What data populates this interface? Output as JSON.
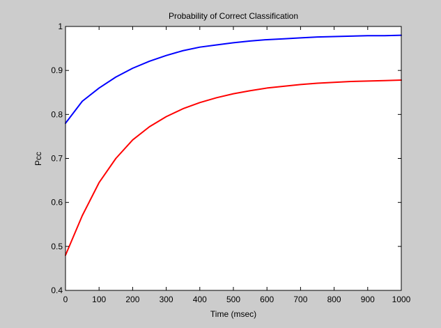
{
  "chart_data": {
    "type": "line",
    "title": "Probability of Correct Classification",
    "xlabel": "Time (msec)",
    "ylabel": "Pcc",
    "xlim": [
      0,
      1000
    ],
    "ylim": [
      0.4,
      1
    ],
    "xticks": [
      0,
      100,
      200,
      300,
      400,
      500,
      600,
      700,
      800,
      900,
      1000
    ],
    "xtick_labels": [
      "0",
      "100",
      "200",
      "300",
      "400",
      "500",
      "600",
      "700",
      "800",
      "900",
      "1000"
    ],
    "yticks": [
      0.4,
      0.5,
      0.6,
      0.7,
      0.8,
      0.9,
      1
    ],
    "ytick_labels": [
      "0.4",
      "0.5",
      "0.6",
      "0.7",
      "0.8",
      "0.9",
      "1"
    ],
    "grid": false,
    "legend": false,
    "background_color": "#cccccc",
    "plot_background_color": "#ffffff",
    "series": [
      {
        "color": "#0000ff",
        "x": [
          0,
          50,
          100,
          150,
          200,
          250,
          300,
          350,
          400,
          450,
          500,
          550,
          600,
          650,
          700,
          750,
          800,
          850,
          900,
          950,
          1000
        ],
        "y": [
          0.78,
          0.83,
          0.86,
          0.885,
          0.905,
          0.921,
          0.934,
          0.945,
          0.953,
          0.958,
          0.963,
          0.967,
          0.97,
          0.972,
          0.974,
          0.976,
          0.977,
          0.978,
          0.979,
          0.979,
          0.98
        ]
      },
      {
        "color": "#ff0000",
        "x": [
          0,
          50,
          100,
          150,
          200,
          250,
          300,
          350,
          400,
          450,
          500,
          550,
          600,
          650,
          700,
          750,
          800,
          850,
          900,
          950,
          1000
        ],
        "y": [
          0.48,
          0.57,
          0.645,
          0.7,
          0.742,
          0.772,
          0.795,
          0.813,
          0.827,
          0.838,
          0.847,
          0.854,
          0.86,
          0.864,
          0.868,
          0.871,
          0.873,
          0.875,
          0.876,
          0.877,
          0.878
        ]
      }
    ]
  }
}
